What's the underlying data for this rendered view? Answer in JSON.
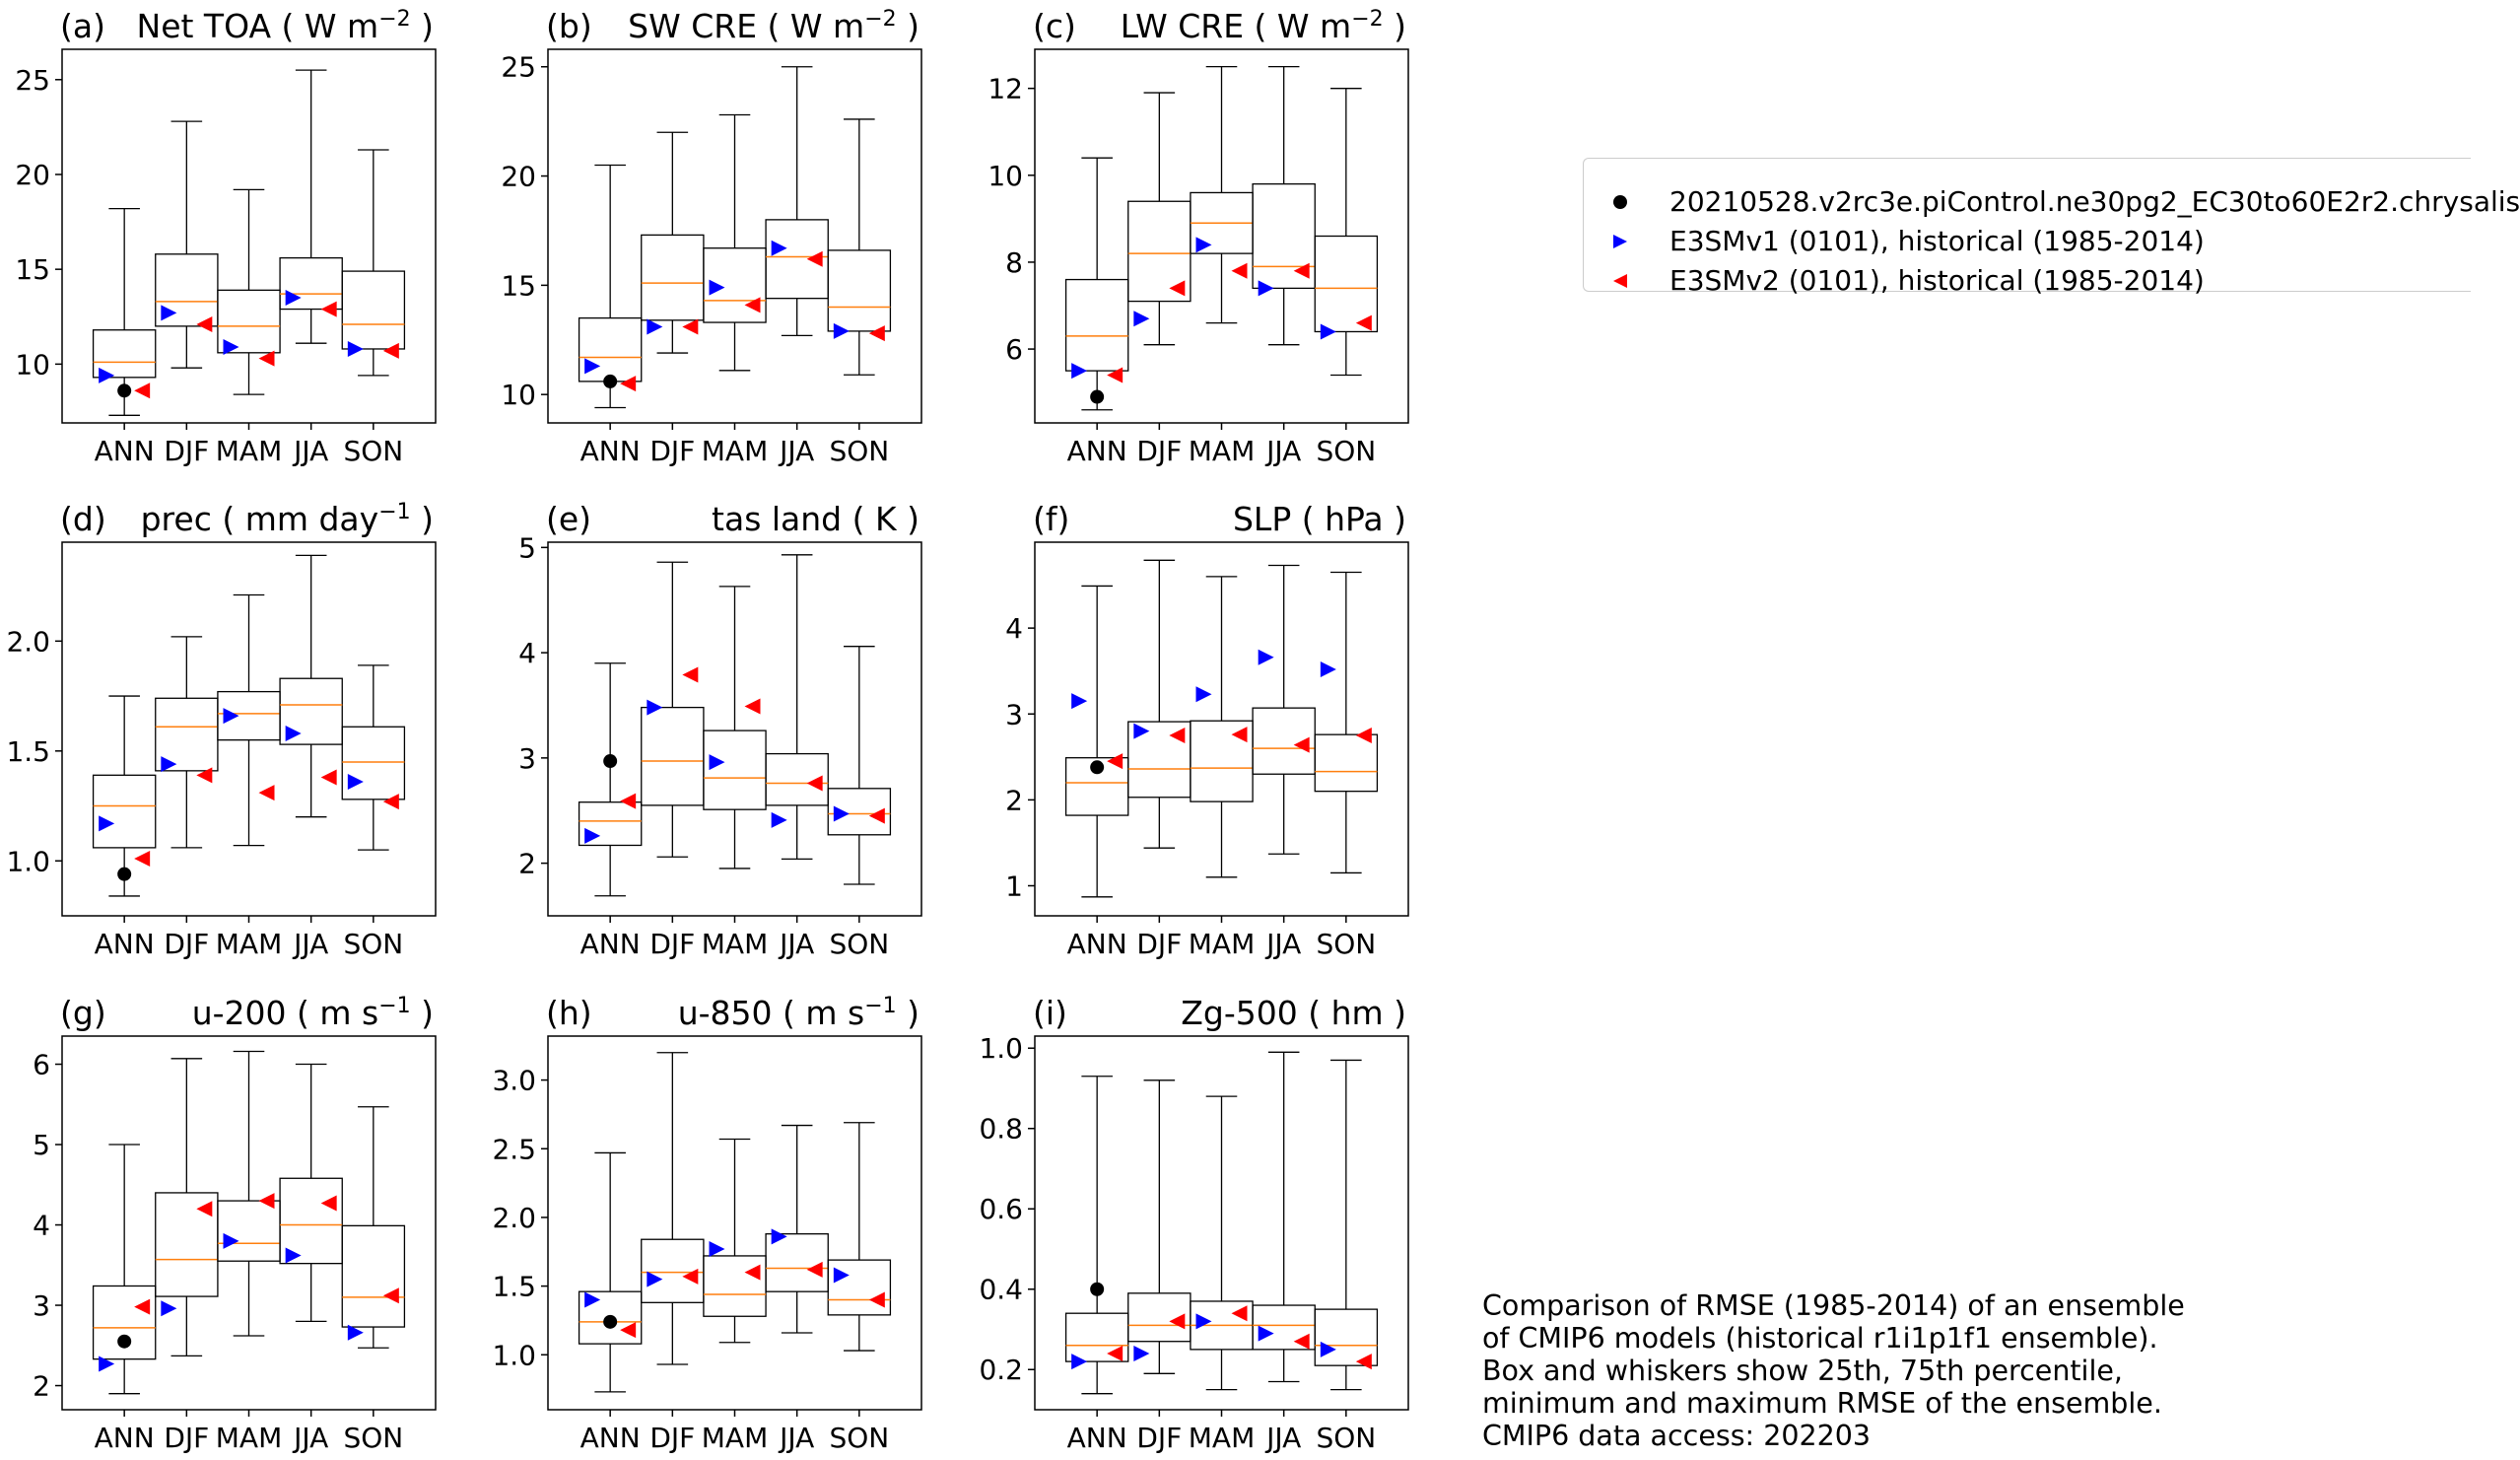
{
  "chart_data": [
    {
      "type": "box",
      "panel_label": "(a)",
      "title_main": "Net TOA ( W m",
      "title_sup": "−2",
      "title_tail": " )",
      "categories": [
        "ANN",
        "DJF",
        "MAM",
        "JJA",
        "SON"
      ],
      "ylim": [
        6.9,
        26.6
      ],
      "yticks": [
        10,
        15,
        20,
        25
      ],
      "boxes": [
        {
          "min": 7.3,
          "q1": 9.3,
          "median": 10.1,
          "q3": 11.8,
          "max": 18.2
        },
        {
          "min": 9.8,
          "q1": 12.0,
          "median": 13.3,
          "q3": 15.8,
          "max": 22.8
        },
        {
          "min": 8.4,
          "q1": 10.6,
          "median": 12.0,
          "q3": 13.9,
          "max": 19.2
        },
        {
          "min": 11.1,
          "q1": 12.9,
          "median": 13.7,
          "q3": 15.6,
          "max": 25.5
        },
        {
          "min": 9.4,
          "q1": 10.8,
          "median": 12.1,
          "q3": 14.9,
          "max": 21.3
        }
      ],
      "points": {
        "piControl": [
          8.6,
          null,
          null,
          null,
          null
        ],
        "E3SMv1": [
          9.4,
          12.7,
          10.9,
          13.5,
          10.8
        ],
        "E3SMv2": [
          8.6,
          12.1,
          10.3,
          12.9,
          10.7
        ]
      }
    },
    {
      "type": "box",
      "panel_label": "(b)",
      "title_main": "SW CRE ( W m",
      "title_sup": "−2",
      "title_tail": " )",
      "categories": [
        "ANN",
        "DJF",
        "MAM",
        "JJA",
        "SON"
      ],
      "ylim": [
        8.7,
        25.8
      ],
      "yticks": [
        10,
        15,
        20,
        25
      ],
      "boxes": [
        {
          "min": 9.4,
          "q1": 10.6,
          "median": 11.7,
          "q3": 13.5,
          "max": 20.5
        },
        {
          "min": 11.9,
          "q1": 13.4,
          "median": 15.1,
          "q3": 17.3,
          "max": 22.0
        },
        {
          "min": 11.1,
          "q1": 13.3,
          "median": 14.3,
          "q3": 16.7,
          "max": 22.8
        },
        {
          "min": 12.7,
          "q1": 14.4,
          "median": 16.3,
          "q3": 18.0,
          "max": 25.0
        },
        {
          "min": 10.9,
          "q1": 12.9,
          "median": 14.0,
          "q3": 16.6,
          "max": 22.6
        }
      ],
      "points": {
        "piControl": [
          10.6,
          null,
          null,
          null,
          null
        ],
        "E3SMv1": [
          11.3,
          13.1,
          14.9,
          16.7,
          12.9
        ],
        "E3SMv2": [
          10.5,
          13.1,
          14.1,
          16.2,
          12.8
        ]
      }
    },
    {
      "type": "box",
      "panel_label": "(c)",
      "title_main": "LW CRE ( W m",
      "title_sup": "−2",
      "title_tail": " )",
      "categories": [
        "ANN",
        "DJF",
        "MAM",
        "JJA",
        "SON"
      ],
      "ylim": [
        4.3,
        12.9
      ],
      "yticks": [
        6,
        8,
        10,
        12
      ],
      "boxes": [
        {
          "min": 4.6,
          "q1": 5.5,
          "median": 6.3,
          "q3": 7.6,
          "max": 10.4
        },
        {
          "min": 6.1,
          "q1": 7.1,
          "median": 8.2,
          "q3": 9.4,
          "max": 11.9
        },
        {
          "min": 6.6,
          "q1": 8.2,
          "median": 8.9,
          "q3": 9.6,
          "max": 12.5
        },
        {
          "min": 6.1,
          "q1": 7.4,
          "median": 7.9,
          "q3": 9.8,
          "max": 12.5
        },
        {
          "min": 5.4,
          "q1": 6.4,
          "median": 7.4,
          "q3": 8.6,
          "max": 12.0
        }
      ],
      "points": {
        "piControl": [
          4.9,
          null,
          null,
          null,
          null
        ],
        "E3SMv1": [
          5.5,
          6.7,
          8.4,
          7.4,
          6.4
        ],
        "E3SMv2": [
          5.4,
          7.4,
          7.8,
          7.8,
          6.6
        ]
      }
    },
    {
      "type": "box",
      "panel_label": "(d)",
      "title_main": "prec ( mm day",
      "title_sup": "−1",
      "title_tail": " )",
      "categories": [
        "ANN",
        "DJF",
        "MAM",
        "JJA",
        "SON"
      ],
      "ylim": [
        0.75,
        2.45
      ],
      "yticks": [
        1.0,
        1.5,
        2.0
      ],
      "tick_decimals": 1,
      "boxes": [
        {
          "min": 0.84,
          "q1": 1.06,
          "median": 1.25,
          "q3": 1.39,
          "max": 1.75
        },
        {
          "min": 1.06,
          "q1": 1.41,
          "median": 1.61,
          "q3": 1.74,
          "max": 2.02
        },
        {
          "min": 1.07,
          "q1": 1.55,
          "median": 1.67,
          "q3": 1.77,
          "max": 2.21
        },
        {
          "min": 1.2,
          "q1": 1.53,
          "median": 1.71,
          "q3": 1.83,
          "max": 2.39
        },
        {
          "min": 1.05,
          "q1": 1.28,
          "median": 1.45,
          "q3": 1.61,
          "max": 1.89
        }
      ],
      "points": {
        "piControl": [
          0.94,
          null,
          null,
          null,
          null
        ],
        "E3SMv1": [
          1.17,
          1.44,
          1.66,
          1.58,
          1.36
        ],
        "E3SMv2": [
          1.01,
          1.39,
          1.31,
          1.38,
          1.27
        ]
      }
    },
    {
      "type": "box",
      "panel_label": "(e)",
      "title_main": "tas land ( K )",
      "title_sup": "",
      "title_tail": "",
      "categories": [
        "ANN",
        "DJF",
        "MAM",
        "JJA",
        "SON"
      ],
      "ylim": [
        1.5,
        5.05
      ],
      "yticks": [
        2,
        3,
        4,
        5
      ],
      "boxes": [
        {
          "min": 1.69,
          "q1": 2.17,
          "median": 2.4,
          "q3": 2.58,
          "max": 3.9
        },
        {
          "min": 2.06,
          "q1": 2.55,
          "median": 2.97,
          "q3": 3.48,
          "max": 4.86
        },
        {
          "min": 1.95,
          "q1": 2.51,
          "median": 2.81,
          "q3": 3.26,
          "max": 4.63
        },
        {
          "min": 2.04,
          "q1": 2.55,
          "median": 2.76,
          "q3": 3.04,
          "max": 4.93
        },
        {
          "min": 1.8,
          "q1": 2.27,
          "median": 2.47,
          "q3": 2.71,
          "max": 4.06
        }
      ],
      "points": {
        "piControl": [
          2.97,
          null,
          null,
          null,
          null
        ],
        "E3SMv1": [
          2.26,
          3.48,
          2.96,
          2.41,
          2.47
        ],
        "E3SMv2": [
          2.59,
          3.79,
          3.49,
          2.76,
          2.45
        ]
      }
    },
    {
      "type": "box",
      "panel_label": "(f)",
      "title_main": "SLP ( hPa )",
      "title_sup": "",
      "title_tail": "",
      "categories": [
        "ANN",
        "DJF",
        "MAM",
        "JJA",
        "SON"
      ],
      "ylim": [
        0.65,
        5.0
      ],
      "yticks": [
        1,
        2,
        3,
        4
      ],
      "boxes": [
        {
          "min": 0.87,
          "q1": 1.82,
          "median": 2.2,
          "q3": 2.49,
          "max": 4.49
        },
        {
          "min": 1.44,
          "q1": 2.03,
          "median": 2.36,
          "q3": 2.91,
          "max": 4.79
        },
        {
          "min": 1.1,
          "q1": 1.98,
          "median": 2.37,
          "q3": 2.92,
          "max": 4.6
        },
        {
          "min": 1.37,
          "q1": 2.3,
          "median": 2.6,
          "q3": 3.07,
          "max": 4.73
        },
        {
          "min": 1.15,
          "q1": 2.1,
          "median": 2.33,
          "q3": 2.76,
          "max": 4.65
        }
      ],
      "points": {
        "piControl": [
          2.38,
          null,
          null,
          null,
          null
        ],
        "E3SMv1": [
          3.15,
          2.8,
          3.23,
          3.66,
          3.52
        ],
        "E3SMv2": [
          2.45,
          2.75,
          2.76,
          2.64,
          2.75
        ]
      }
    },
    {
      "type": "box",
      "panel_label": "(g)",
      "title_main": "u-200 ( m s",
      "title_sup": "−1",
      "title_tail": " )",
      "categories": [
        "ANN",
        "DJF",
        "MAM",
        "JJA",
        "SON"
      ],
      "ylim": [
        1.7,
        6.35
      ],
      "yticks": [
        2,
        3,
        4,
        5,
        6
      ],
      "boxes": [
        {
          "min": 1.9,
          "q1": 2.33,
          "median": 2.72,
          "q3": 3.24,
          "max": 5.0
        },
        {
          "min": 2.37,
          "q1": 3.11,
          "median": 3.57,
          "q3": 4.4,
          "max": 6.07
        },
        {
          "min": 2.62,
          "q1": 3.55,
          "median": 3.77,
          "q3": 4.3,
          "max": 6.16
        },
        {
          "min": 2.8,
          "q1": 3.52,
          "median": 4.0,
          "q3": 4.58,
          "max": 6.0
        },
        {
          "min": 2.47,
          "q1": 2.73,
          "median": 3.1,
          "q3": 3.99,
          "max": 5.47
        }
      ],
      "points": {
        "piControl": [
          2.55,
          null,
          null,
          null,
          null
        ],
        "E3SMv1": [
          2.27,
          2.96,
          3.8,
          3.62,
          2.66
        ],
        "E3SMv2": [
          2.98,
          4.2,
          4.3,
          4.27,
          3.12
        ]
      }
    },
    {
      "type": "box",
      "panel_label": "(h)",
      "title_main": "u-850 ( m s",
      "title_sup": "−1",
      "title_tail": " )",
      "categories": [
        "ANN",
        "DJF",
        "MAM",
        "JJA",
        "SON"
      ],
      "ylim": [
        0.6,
        3.32
      ],
      "yticks": [
        1.0,
        1.5,
        2.0,
        2.5,
        3.0
      ],
      "tick_decimals": 1,
      "boxes": [
        {
          "min": 0.73,
          "q1": 1.08,
          "median": 1.24,
          "q3": 1.46,
          "max": 2.47
        },
        {
          "min": 0.93,
          "q1": 1.38,
          "median": 1.6,
          "q3": 1.84,
          "max": 3.2
        },
        {
          "min": 1.09,
          "q1": 1.28,
          "median": 1.44,
          "q3": 1.72,
          "max": 2.57
        },
        {
          "min": 1.16,
          "q1": 1.46,
          "median": 1.63,
          "q3": 1.88,
          "max": 2.67
        },
        {
          "min": 1.03,
          "q1": 1.29,
          "median": 1.4,
          "q3": 1.69,
          "max": 2.69
        }
      ],
      "points": {
        "piControl": [
          1.24,
          null,
          null,
          null,
          null
        ],
        "E3SMv1": [
          1.4,
          1.55,
          1.77,
          1.86,
          1.58
        ],
        "E3SMv2": [
          1.18,
          1.57,
          1.6,
          1.62,
          1.4
        ]
      }
    },
    {
      "type": "box",
      "panel_label": "(i)",
      "title_main": "Zg-500 ( hm )",
      "title_sup": "",
      "title_tail": "",
      "categories": [
        "ANN",
        "DJF",
        "MAM",
        "JJA",
        "SON"
      ],
      "ylim": [
        0.1,
        1.03
      ],
      "yticks": [
        0.2,
        0.4,
        0.6,
        0.8,
        1.0
      ],
      "tick_decimals": 1,
      "boxes": [
        {
          "min": 0.14,
          "q1": 0.22,
          "median": 0.26,
          "q3": 0.34,
          "max": 0.93
        },
        {
          "min": 0.19,
          "q1": 0.27,
          "median": 0.31,
          "q3": 0.39,
          "max": 0.92
        },
        {
          "min": 0.15,
          "q1": 0.25,
          "median": 0.31,
          "q3": 0.37,
          "max": 0.88
        },
        {
          "min": 0.17,
          "q1": 0.25,
          "median": 0.31,
          "q3": 0.36,
          "max": 0.99
        },
        {
          "min": 0.15,
          "q1": 0.21,
          "median": 0.26,
          "q3": 0.35,
          "max": 0.97
        }
      ],
      "points": {
        "piControl": [
          0.4,
          null,
          null,
          null,
          null
        ],
        "E3SMv1": [
          0.22,
          0.24,
          0.32,
          0.29,
          0.25
        ],
        "E3SMv2": [
          0.24,
          0.32,
          0.34,
          0.27,
          0.22
        ]
      }
    }
  ],
  "legend": {
    "entries": [
      {
        "label": "20210528.v2rc3e.piControl.ne30pg2_EC30to60E2r2.chrysalis",
        "marker": "circle",
        "color": "#000000"
      },
      {
        "label": "E3SMv1 (0101), historical (1985-2014)",
        "marker": "triangle-right",
        "color": "#0000ff"
      },
      {
        "label": "E3SMv2 (0101), historical (1985-2014)",
        "marker": "triangle-left",
        "color": "#ff0000"
      }
    ]
  },
  "caption": {
    "lines": [
      "Comparison of RMSE (1985-2014) of an ensemble",
      "of CMIP6 models (historical r1i1p1f1 ensemble).",
      "Box and whiskers show 25th, 75th percentile,",
      "minimum and maximum RMSE of the ensemble.",
      "CMIP6 data access: 202203"
    ]
  },
  "colors": {
    "median": "#ff7f0e",
    "box": "#000000",
    "piControl": "#000000",
    "E3SMv1": "#0000ff",
    "E3SMv2": "#ff0000"
  }
}
